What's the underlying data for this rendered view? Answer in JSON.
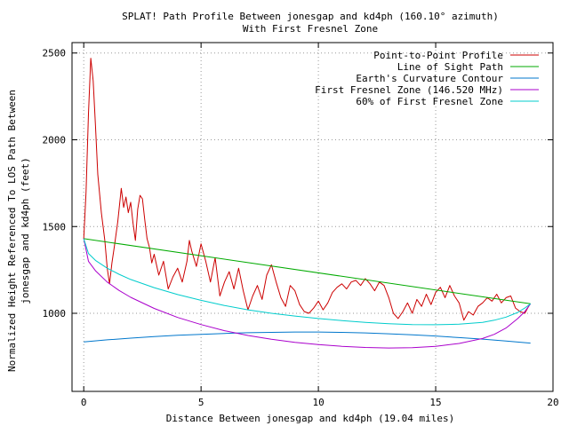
{
  "chart_data": {
    "type": "line",
    "title": "SPLAT! Path Profile Between jonesgap and kd4ph (160.10° azimuth)",
    "subtitle": "With First Fresnel Zone",
    "xlabel": "Distance Between jonesgap and kd4ph (19.04 miles)",
    "ylabel_line1": "Normalized Height Referenced To LOS Path Between",
    "ylabel_line2": "jonesgap and kd4ph (feet)",
    "xlim": [
      -0.5,
      20
    ],
    "ylim": [
      550,
      2560
    ],
    "x_ticks": [
      0,
      5,
      10,
      15,
      20
    ],
    "y_ticks": [
      1000,
      1500,
      2000,
      2500
    ],
    "grid": true,
    "legend_position": "top-right",
    "colors": {
      "profile": "#cc0000",
      "los": "#00aa00",
      "curvature": "#0077cc",
      "fresnel": "#aa00cc",
      "fresnel60": "#00cccc"
    },
    "series": [
      {
        "name": "Point-to-Point Profile",
        "key": "profile",
        "x": [
          0.0,
          0.1,
          0.2,
          0.3,
          0.4,
          0.5,
          0.6,
          0.75,
          0.9,
          1.0,
          1.1,
          1.2,
          1.3,
          1.45,
          1.6,
          1.7,
          1.8,
          1.9,
          2.0,
          2.1,
          2.2,
          2.3,
          2.4,
          2.5,
          2.6,
          2.7,
          2.8,
          2.9,
          3.0,
          3.2,
          3.4,
          3.6,
          3.8,
          4.0,
          4.2,
          4.4,
          4.5,
          4.6,
          4.8,
          5.0,
          5.2,
          5.4,
          5.6,
          5.8,
          6.0,
          6.2,
          6.4,
          6.6,
          6.8,
          7.0,
          7.2,
          7.4,
          7.6,
          7.8,
          8.0,
          8.2,
          8.4,
          8.6,
          8.8,
          9.0,
          9.2,
          9.4,
          9.6,
          9.8,
          10.0,
          10.2,
          10.4,
          10.6,
          10.8,
          11.0,
          11.2,
          11.4,
          11.6,
          11.8,
          12.0,
          12.2,
          12.4,
          12.6,
          12.8,
          13.0,
          13.2,
          13.4,
          13.6,
          13.8,
          14.0,
          14.2,
          14.4,
          14.6,
          14.8,
          15.0,
          15.2,
          15.4,
          15.6,
          15.8,
          16.0,
          16.2,
          16.4,
          16.6,
          16.8,
          17.0,
          17.2,
          17.4,
          17.6,
          17.8,
          18.0,
          18.2,
          18.4,
          18.6,
          18.8,
          19.0
        ],
        "y": [
          1430,
          1700,
          2150,
          2470,
          2340,
          2080,
          1800,
          1580,
          1420,
          1260,
          1170,
          1290,
          1380,
          1530,
          1720,
          1610,
          1670,
          1580,
          1640,
          1520,
          1420,
          1600,
          1680,
          1660,
          1540,
          1430,
          1380,
          1290,
          1340,
          1220,
          1300,
          1140,
          1210,
          1260,
          1180,
          1300,
          1420,
          1360,
          1270,
          1400,
          1300,
          1180,
          1320,
          1100,
          1180,
          1240,
          1140,
          1260,
          1130,
          1020,
          1100,
          1160,
          1080,
          1220,
          1280,
          1180,
          1090,
          1040,
          1160,
          1130,
          1050,
          1010,
          1000,
          1030,
          1070,
          1020,
          1060,
          1120,
          1150,
          1170,
          1140,
          1180,
          1190,
          1160,
          1200,
          1170,
          1130,
          1180,
          1160,
          1090,
          1000,
          970,
          1010,
          1060,
          1000,
          1080,
          1040,
          1110,
          1050,
          1120,
          1150,
          1090,
          1160,
          1100,
          1060,
          960,
          1010,
          990,
          1040,
          1060,
          1090,
          1070,
          1110,
          1060,
          1090,
          1100,
          1030,
          1010,
          1000,
          1050
        ]
      },
      {
        "name": "Line of Sight Path",
        "key": "los",
        "x": [
          0.0,
          19.04
        ],
        "y": [
          1430,
          1055
        ]
      },
      {
        "name": "Earth's Curvature Contour",
        "key": "curvature",
        "x": [
          0.0,
          1.0,
          2.0,
          3.0,
          4.0,
          5.0,
          6.0,
          7.0,
          8.0,
          9.0,
          9.5,
          10.0,
          11.0,
          12.0,
          13.0,
          14.0,
          15.0,
          16.0,
          17.0,
          18.0,
          19.04
        ],
        "y": [
          835,
          847,
          857,
          866,
          873,
          879,
          884,
          888,
          890,
          892,
          892,
          892,
          890,
          887,
          882,
          876,
          869,
          860,
          851,
          840,
          828
        ]
      },
      {
        "name": "First Fresnel Zone (146.520 MHz)",
        "key": "fresnel",
        "x": [
          0.0,
          0.2,
          0.5,
          1.0,
          1.5,
          2.0,
          3.0,
          4.0,
          5.0,
          6.0,
          7.0,
          8.0,
          9.0,
          10.0,
          11.0,
          12.0,
          13.0,
          14.0,
          15.0,
          16.0,
          17.0,
          17.5,
          18.0,
          18.5,
          18.8,
          19.04
        ],
        "y": [
          1430,
          1300,
          1245,
          1180,
          1132,
          1092,
          1028,
          976,
          935,
          900,
          872,
          850,
          833,
          820,
          810,
          803,
          800,
          802,
          810,
          826,
          855,
          879,
          915,
          970,
          1010,
          1055
        ]
      },
      {
        "name": "60% of First Fresnel Zone",
        "key": "fresnel60",
        "x": [
          0.0,
          0.2,
          0.5,
          1.0,
          1.5,
          2.0,
          3.0,
          4.0,
          5.0,
          6.0,
          7.0,
          8.0,
          9.0,
          10.0,
          11.0,
          12.0,
          13.0,
          14.0,
          15.0,
          16.0,
          17.0,
          17.5,
          18.0,
          18.5,
          18.8,
          19.04
        ],
        "y": [
          1430,
          1345,
          1305,
          1260,
          1225,
          1195,
          1148,
          1108,
          1075,
          1045,
          1020,
          1000,
          984,
          970,
          958,
          948,
          940,
          935,
          934,
          937,
          948,
          960,
          978,
          1005,
          1030,
          1055
        ]
      }
    ]
  }
}
